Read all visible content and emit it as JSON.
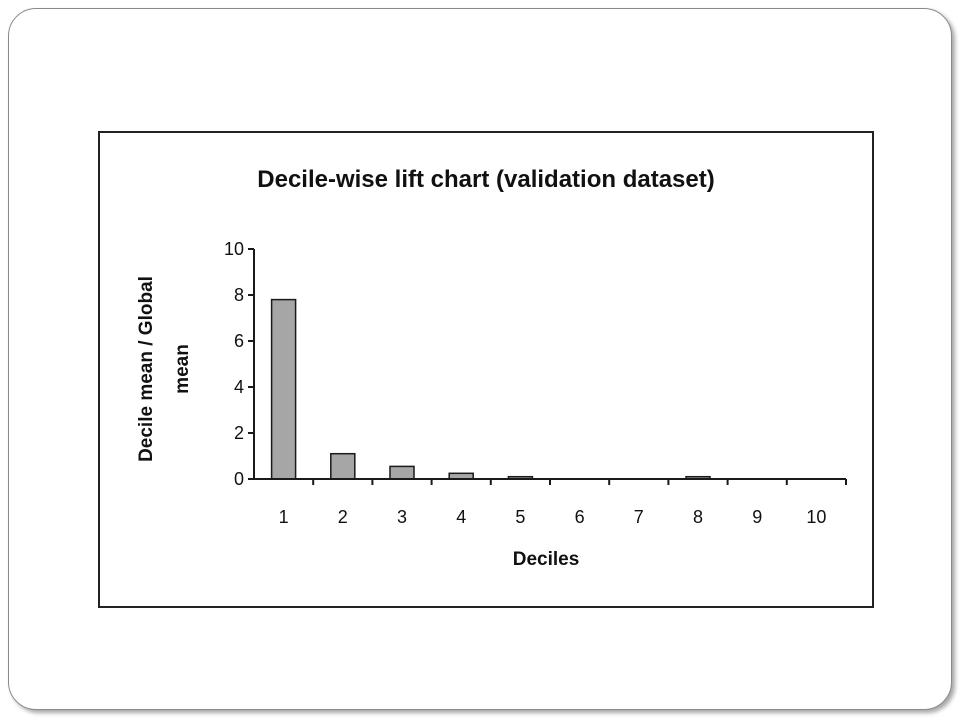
{
  "chart_data": {
    "type": "bar",
    "title": "Decile-wise lift chart (validation dataset)",
    "xlabel": "Deciles",
    "ylabel_line1": "Decile mean / Global",
    "ylabel_line2": "mean",
    "categories": [
      "1",
      "2",
      "3",
      "4",
      "5",
      "6",
      "7",
      "8",
      "9",
      "10"
    ],
    "values": [
      7.8,
      1.1,
      0.55,
      0.25,
      0.1,
      0.0,
      0.0,
      0.1,
      0.0,
      0.0
    ],
    "ylim": [
      0,
      10
    ],
    "yticks": [
      "0",
      "2",
      "4",
      "6",
      "8",
      "10"
    ],
    "grid": false,
    "bar_color": "#a6a6a6"
  }
}
